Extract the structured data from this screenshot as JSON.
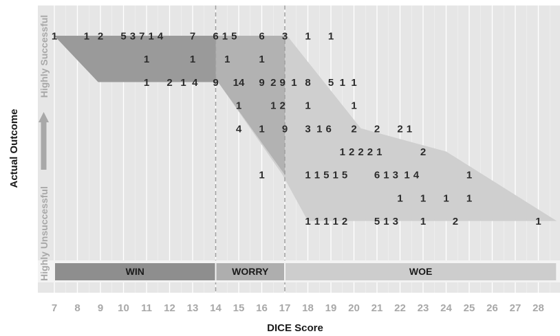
{
  "chart_data": {
    "type": "scatter",
    "xlabel": "DICE Score",
    "ylabel": "Actual Outcome",
    "y_axis_end_labels": {
      "top": "Highly Successful",
      "bottom": "Highly Unsuccessful"
    },
    "x_ticks": [
      7,
      8,
      9,
      10,
      11,
      12,
      13,
      14,
      15,
      16,
      17,
      18,
      19,
      20,
      21,
      22,
      23,
      24,
      25,
      26,
      27,
      28
    ],
    "xlim": [
      7,
      28.8
    ],
    "y_levels": 9,
    "zones": [
      {
        "name": "WIN",
        "x_range": [
          7,
          14
        ],
        "color": "#8e8e8e"
      },
      {
        "name": "WORRY",
        "x_range": [
          14,
          17
        ],
        "color": "#aeaeae"
      },
      {
        "name": "WOE",
        "x_range": [
          17,
          28.8
        ],
        "color": "#cdcdcd"
      }
    ],
    "zone_dividers": [
      14,
      17
    ],
    "points": [
      {
        "x": 7,
        "y": 1,
        "label": "1"
      },
      {
        "x": 8.4,
        "y": 1,
        "label": "1"
      },
      {
        "x": 9,
        "y": 1,
        "label": "2"
      },
      {
        "x": 10,
        "y": 1,
        "label": "5"
      },
      {
        "x": 10.4,
        "y": 1,
        "label": "3"
      },
      {
        "x": 10.8,
        "y": 1,
        "label": "7"
      },
      {
        "x": 11.2,
        "y": 1,
        "label": "1"
      },
      {
        "x": 11.6,
        "y": 1,
        "label": "4"
      },
      {
        "x": 13,
        "y": 1,
        "label": "7"
      },
      {
        "x": 14,
        "y": 1,
        "label": "6"
      },
      {
        "x": 14.4,
        "y": 1,
        "label": "1"
      },
      {
        "x": 14.8,
        "y": 1,
        "label": "5"
      },
      {
        "x": 16,
        "y": 1,
        "label": "6"
      },
      {
        "x": 17,
        "y": 1,
        "label": "3"
      },
      {
        "x": 18,
        "y": 1,
        "label": "1"
      },
      {
        "x": 19,
        "y": 1,
        "label": "1"
      },
      {
        "x": 11,
        "y": 2,
        "label": "1"
      },
      {
        "x": 13,
        "y": 2,
        "label": "1"
      },
      {
        "x": 14.5,
        "y": 2,
        "label": "1"
      },
      {
        "x": 16,
        "y": 2,
        "label": "1"
      },
      {
        "x": 11,
        "y": 3,
        "label": "1"
      },
      {
        "x": 12,
        "y": 3,
        "label": "2"
      },
      {
        "x": 12.6,
        "y": 3,
        "label": "1"
      },
      {
        "x": 13.1,
        "y": 3,
        "label": "4"
      },
      {
        "x": 14,
        "y": 3,
        "label": "9"
      },
      {
        "x": 15,
        "y": 3,
        "label": "14"
      },
      {
        "x": 16,
        "y": 3,
        "label": "9"
      },
      {
        "x": 16.5,
        "y": 3,
        "label": "2"
      },
      {
        "x": 16.9,
        "y": 3,
        "label": "9"
      },
      {
        "x": 17.4,
        "y": 3,
        "label": "1"
      },
      {
        "x": 18,
        "y": 3,
        "label": "8"
      },
      {
        "x": 19,
        "y": 3,
        "label": "5"
      },
      {
        "x": 19.5,
        "y": 3,
        "label": "1"
      },
      {
        "x": 20,
        "y": 3,
        "label": "1"
      },
      {
        "x": 15,
        "y": 4,
        "label": "1"
      },
      {
        "x": 16.5,
        "y": 4,
        "label": "1"
      },
      {
        "x": 16.9,
        "y": 4,
        "label": "2"
      },
      {
        "x": 18,
        "y": 4,
        "label": "1"
      },
      {
        "x": 20,
        "y": 4,
        "label": "1"
      },
      {
        "x": 15,
        "y": 5,
        "label": "4"
      },
      {
        "x": 16,
        "y": 5,
        "label": "1"
      },
      {
        "x": 17,
        "y": 5,
        "label": "9"
      },
      {
        "x": 18,
        "y": 5,
        "label": "3"
      },
      {
        "x": 18.5,
        "y": 5,
        "label": "1"
      },
      {
        "x": 18.9,
        "y": 5,
        "label": "6"
      },
      {
        "x": 20,
        "y": 5,
        "label": "2"
      },
      {
        "x": 21,
        "y": 5,
        "label": "2"
      },
      {
        "x": 22,
        "y": 5,
        "label": "2"
      },
      {
        "x": 22.4,
        "y": 5,
        "label": "1"
      },
      {
        "x": 19.5,
        "y": 6,
        "label": "1"
      },
      {
        "x": 19.9,
        "y": 6,
        "label": "2"
      },
      {
        "x": 20.3,
        "y": 6,
        "label": "2"
      },
      {
        "x": 20.7,
        "y": 6,
        "label": "2"
      },
      {
        "x": 21.1,
        "y": 6,
        "label": "1"
      },
      {
        "x": 23,
        "y": 6,
        "label": "2"
      },
      {
        "x": 16,
        "y": 7,
        "label": "1"
      },
      {
        "x": 18,
        "y": 7,
        "label": "1"
      },
      {
        "x": 18.4,
        "y": 7,
        "label": "1"
      },
      {
        "x": 18.8,
        "y": 7,
        "label": "5"
      },
      {
        "x": 19.2,
        "y": 7,
        "label": "1"
      },
      {
        "x": 19.6,
        "y": 7,
        "label": "5"
      },
      {
        "x": 21,
        "y": 7,
        "label": "6"
      },
      {
        "x": 21.4,
        "y": 7,
        "label": "1"
      },
      {
        "x": 21.8,
        "y": 7,
        "label": "3"
      },
      {
        "x": 22.3,
        "y": 7,
        "label": "1"
      },
      {
        "x": 22.7,
        "y": 7,
        "label": "4"
      },
      {
        "x": 25,
        "y": 7,
        "label": "1"
      },
      {
        "x": 22,
        "y": 8,
        "label": "1"
      },
      {
        "x": 23,
        "y": 8,
        "label": "1"
      },
      {
        "x": 24,
        "y": 8,
        "label": "1"
      },
      {
        "x": 25,
        "y": 8,
        "label": "1"
      },
      {
        "x": 18,
        "y": 9,
        "label": "1"
      },
      {
        "x": 18.4,
        "y": 9,
        "label": "1"
      },
      {
        "x": 18.8,
        "y": 9,
        "label": "1"
      },
      {
        "x": 19.2,
        "y": 9,
        "label": "1"
      },
      {
        "x": 19.6,
        "y": 9,
        "label": "2"
      },
      {
        "x": 21,
        "y": 9,
        "label": "5"
      },
      {
        "x": 21.4,
        "y": 9,
        "label": "1"
      },
      {
        "x": 21.8,
        "y": 9,
        "label": "3"
      },
      {
        "x": 23,
        "y": 9,
        "label": "1"
      },
      {
        "x": 24.4,
        "y": 9,
        "label": "2"
      },
      {
        "x": 28,
        "y": 9,
        "label": "1"
      }
    ]
  }
}
